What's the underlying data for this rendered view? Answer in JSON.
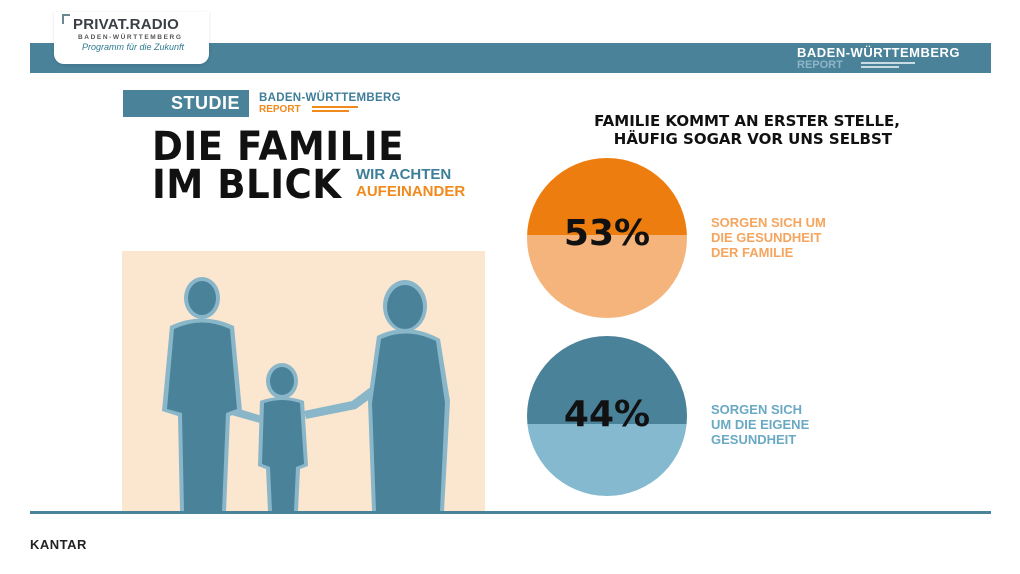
{
  "logo": {
    "title": "PRIVAT.RADIO",
    "subtitle": "BADEN-WÜRTTEMBERG",
    "tagline": "Programm für die Zukunft"
  },
  "header_badge": {
    "line1": "BADEN-WÜRTTEMBERG",
    "line2": "REPORT"
  },
  "study": {
    "label": "STUDIE",
    "report_line1": "BADEN-WÜRTTEMBERG",
    "report_line2": "REPORT",
    "headline_line1": "DIE FAMILIE",
    "headline_line2": "IM BLICK",
    "subline1": "WIR ACHTEN",
    "subline2": "AUFEINANDER"
  },
  "question": {
    "line1": "FAMILIE KOMMT AN ERSTER STELLE,",
    "line2": "HÄUFIG SOGAR VOR UNS SELBST"
  },
  "stats": [
    {
      "value": "53%",
      "line1": "SORGEN SICH UM",
      "line2": "DIE GESUNDHEIT",
      "line3": "DER FAMILIE",
      "color_top": "#ee7d0f",
      "color_bottom": "#f5b47c"
    },
    {
      "value": "44%",
      "line1": "SORGEN SICH",
      "line2": "UM DIE EIGENE",
      "line3": "GESUNDHEIT",
      "color_top": "#4a8299",
      "color_bottom": "#84b9cf"
    }
  ],
  "footer": {
    "brand": "KANTAR"
  },
  "colors": {
    "accent_blue": "#4a8299",
    "accent_orange": "#f08a1c",
    "photo_bg": "#fbe6cf"
  }
}
